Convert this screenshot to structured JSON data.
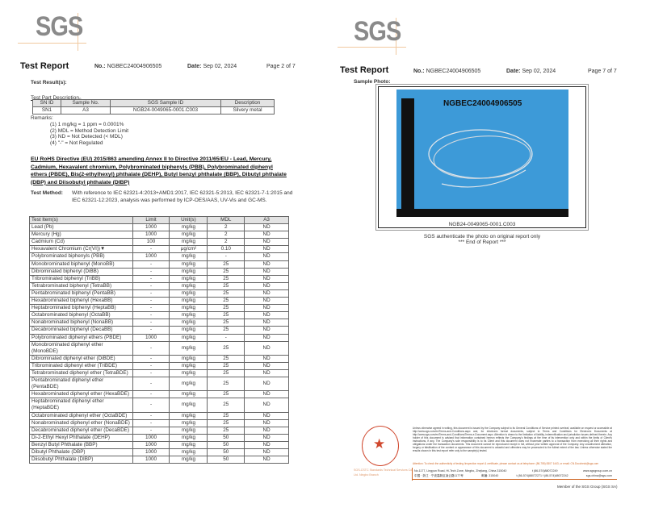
{
  "left_page": {
    "logo": "SGS",
    "title": "Test Report",
    "no_label": "No.:",
    "no": "NGBEC24004906505",
    "date_label": "Date:",
    "date": "Sep 02, 2024",
    "page": "Page 2 of 7",
    "results_label": "Test Result(s):",
    "part_desc_label": "Test Part Description。",
    "part_headers": [
      "SN ID",
      "Sample No.",
      "SGS Sample ID",
      "Description"
    ],
    "part_row": [
      "SN1",
      "A3",
      "NGB24-0049065-0001.C003",
      "Silvery metal"
    ],
    "remarks_label": "Remarks:",
    "remarks": [
      "(1)  1 mg/kg = 1 ppm = 0.0001%",
      "(2)  MDL = Method Detection Limit",
      "(3)  ND = Not Detected (< MDL)",
      "(4)  \"-\" = Not Regulated"
    ],
    "directive": "EU RoHS Directive (EU) 2015/863 amending Annex II to Directive 2011/65/EU - Lead, Mercury, Cadmium, Hexavalent chromium, Polybrominated biphenyls (PBB), Polybrominated diphenyl ethers (PBDE), Bis(2-ethylhexyl) phthalate (DEHP), Butyl benzyl phthalate (BBP), Dibutyl phthalate (DBP) and Diisobutyl phthalate (DIBP)",
    "method_label": "Test Method:",
    "method": "With reference to IEC 62321-4:2013+AMD1:2017, IEC 62321-5:2013, IEC 62321-7-1:2015 and IEC 62321-12:2023, analysis was performed by ICP-OES/AAS, UV-Vis and GC-MS.",
    "table_headers": [
      "Test Item(s)",
      "Limit",
      "Unit(s)",
      "MDL",
      "A3"
    ],
    "rows": [
      [
        "Lead (Pb)",
        "1000",
        "mg/kg",
        "2",
        "ND"
      ],
      [
        "Mercury (Hg)",
        "1000",
        "mg/kg",
        "2",
        "ND"
      ],
      [
        "Cadmium (Cd)",
        "100",
        "mg/kg",
        "2",
        "ND"
      ],
      [
        "Hexavalent Chromium (Cr(VI))▼",
        "-",
        "μg/cm²",
        "0.10",
        "ND"
      ],
      [
        "Polybrominated biphenyls (PBB)",
        "1000",
        "mg/kg",
        "-",
        "ND"
      ],
      [
        "Monobrominated biphenyl (MonoBB)",
        "-",
        "mg/kg",
        "25",
        "ND"
      ],
      [
        "Dibrominated biphenyl (DiBB)",
        "-",
        "mg/kg",
        "25",
        "ND"
      ],
      [
        "Tribrominated biphenyl (TriBB)",
        "-",
        "mg/kg",
        "25",
        "ND"
      ],
      [
        "Tetrabrominated biphenyl (TetraBB)",
        "-",
        "mg/kg",
        "25",
        "ND"
      ],
      [
        "Pentabrominated biphenyl (PentaBB)",
        "-",
        "mg/kg",
        "25",
        "ND"
      ],
      [
        "Hexabrominated biphenyl (HexaBB)",
        "-",
        "mg/kg",
        "25",
        "ND"
      ],
      [
        "Heptabrominated biphenyl (HeptaBB)",
        "-",
        "mg/kg",
        "25",
        "ND"
      ],
      [
        "Octabrominated biphenyl (OctaBB)",
        "-",
        "mg/kg",
        "25",
        "ND"
      ],
      [
        "Nonabrominated biphenyl (NonaBB)",
        "-",
        "mg/kg",
        "25",
        "ND"
      ],
      [
        "Decabrominated biphenyl (DecaBB)",
        "-",
        "mg/kg",
        "25",
        "ND"
      ],
      [
        "Polybrominated diphenyl ethers (PBDE)",
        "1000",
        "mg/kg",
        "-",
        "ND"
      ],
      [
        "Monobrominated diphenyl ether (MonoBDE)",
        "-",
        "mg/kg",
        "25",
        "ND"
      ],
      [
        "Dibrominated diphenyl ether (DiBDE)",
        "-",
        "mg/kg",
        "25",
        "ND"
      ],
      [
        "Tribrominated diphenyl ether (TriBDE)",
        "-",
        "mg/kg",
        "25",
        "ND"
      ],
      [
        "Tetrabrominated diphenyl ether (TetraBDE)",
        "-",
        "mg/kg",
        "25",
        "ND"
      ],
      [
        "Pentabrominated diphenyl ether (PentaBDE)",
        "-",
        "mg/kg",
        "25",
        "ND"
      ],
      [
        "Hexabrominated diphenyl ether (HexaBDE)",
        "-",
        "mg/kg",
        "25",
        "ND"
      ],
      [
        "Heptabrominated diphenyl ether (HeptaBDE)",
        "-",
        "mg/kg",
        "25",
        "ND"
      ],
      [
        "Octabrominated diphenyl ether (OctaBDE)",
        "-",
        "mg/kg",
        "25",
        "ND"
      ],
      [
        "Nonabrominated diphenyl ether (NonaBDE)",
        "-",
        "mg/kg",
        "25",
        "ND"
      ],
      [
        "Decabrominated diphenyl ether (DecaBDE)",
        "-",
        "mg/kg",
        "25",
        "ND"
      ],
      [
        "Di-2-Ethyl Hexyl Phthalate (DEHP)",
        "1000",
        "mg/kg",
        "50",
        "ND"
      ],
      [
        "Benzyl Butyl Phthalate (BBP)",
        "1000",
        "mg/kg",
        "50",
        "ND"
      ],
      [
        "Dibutyl Phthalate (DBP)",
        "1000",
        "mg/kg",
        "50",
        "ND"
      ],
      [
        "Diisobutyl Phthalate (DIBP)",
        "1000",
        "mg/kg",
        "50",
        "ND"
      ]
    ]
  },
  "right_page": {
    "logo": "SGS",
    "title": "Test Report",
    "no_label": "No.:",
    "no": "NGBEC24004906505",
    "date_label": "Date:",
    "date": "Sep 02, 2024",
    "page": "Page 7 of 7",
    "photo_label": "Sample Photo:",
    "photo_text": "NGBEC24004906505",
    "photo_caption": "NGB24-0049065-0001.C003",
    "authenticate": "SGS authenticate the photo on original report only",
    "end": "*** End of Report ***",
    "disclaimer": "Unless otherwise agreed in writing, this document is issued by the Company subject to its General Conditions of Service printed overleaf, available on request or accessible at http://www.sgs.com/en/Terms-and-Conditions.aspx and, for electronic format documents, subject to Terms and Conditions for Electronic Documents at http://www.sgs.com/en/Terms-and-Conditions/Terms-e-Document.aspx. Attention is drawn to the limitation of liability, indemnification and jurisdiction issues defined therein. Any holder of this document is advised that information contained hereon reflects the Company's findings at the time of its intervention only and within the limits of Client's instructions, if any. The Company's sole responsibility is to its Client and this document does not exonerate parties to a transaction from exercising all their rights and obligations under the transaction documents. This document cannot be reproduced except in full, without prior written approval of the Company. Any unauthorized alteration, forgery or falsification of the content or appearance of this document is unlawful and offenders may be prosecuted to the fullest extent of the law. Unless otherwise stated the results shown in this test report refer only to the sample(s) tested.",
    "attention": "Attention: To check the authenticity of testing /inspection report & certificate, please contact us at telephone: (86-755) 8307 1443, or email: CN.Doccheck@sgs.com",
    "address_en": "No.1177, Lingyun Road, Hi-Tech Zone, Ningbo, Zhejiang, China 315040",
    "phone_en": "t (86-574)88072249",
    "web": "www.sgsgroup.com.cn",
    "address_cn": "中国 · 浙江 · 宁波高新区凌云路1177号",
    "postal_cn": "邮编: 315040",
    "phone_cn": "t (86-574)88072271   f (86-574)88072242",
    "email": "sgs.china@sgs.com",
    "stamp_text": "SGS-CSTC Standards Technical Services Co., Ltd. Ningbo Branch",
    "member": "Member of the SGS Group (SGS SA)"
  },
  "colors": {
    "logo": "#8a8a8a",
    "photo_bg": "#3d9ad8",
    "stamp": "#d0482e",
    "accent": "#d06a2a"
  }
}
